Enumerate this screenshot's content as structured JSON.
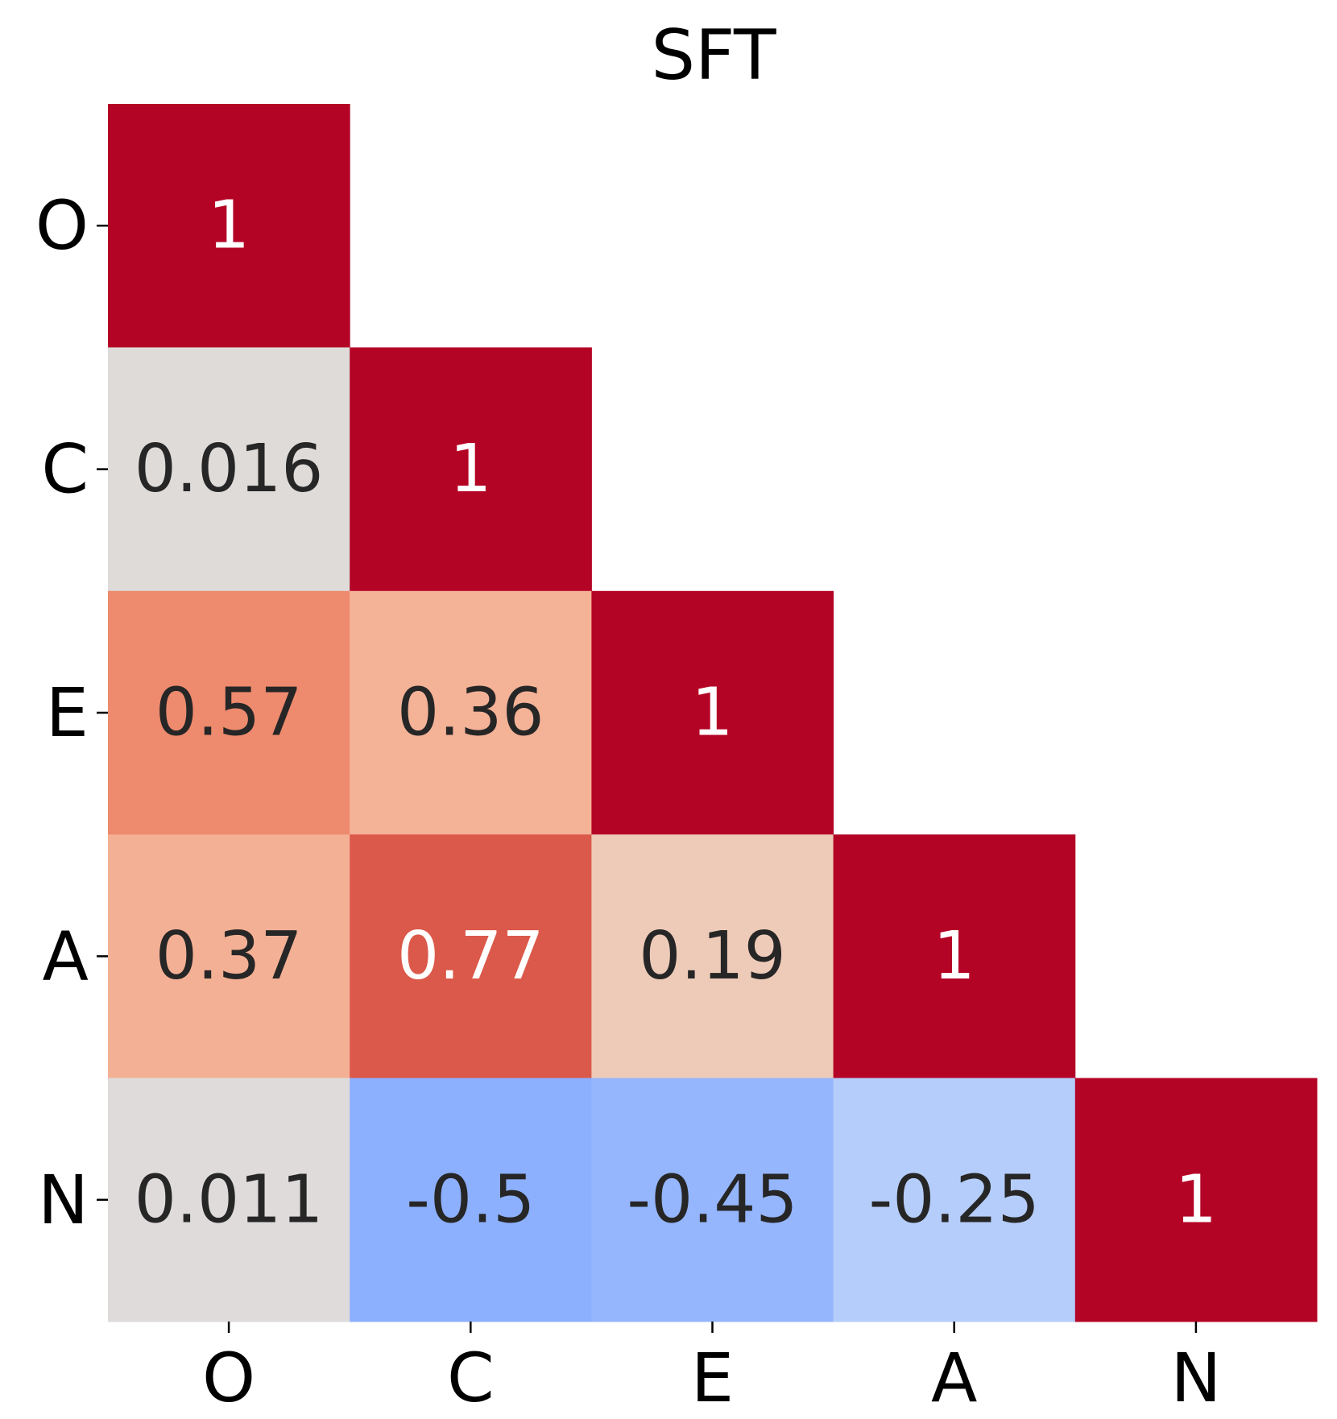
{
  "chart_data": {
    "type": "heatmap",
    "title": "SFT",
    "x_labels": [
      "O",
      "C",
      "E",
      "A",
      "N"
    ],
    "y_labels": [
      "O",
      "C",
      "E",
      "A",
      "N"
    ],
    "values": [
      [
        1,
        null,
        null,
        null,
        null
      ],
      [
        0.016,
        1,
        null,
        null,
        null
      ],
      [
        0.57,
        0.36,
        1,
        null,
        null
      ],
      [
        0.37,
        0.77,
        0.19,
        1,
        null
      ],
      [
        0.011,
        -0.5,
        -0.45,
        -0.25,
        1
      ]
    ],
    "colormap": "coolwarm",
    "clim": [
      -1,
      1
    ]
  }
}
